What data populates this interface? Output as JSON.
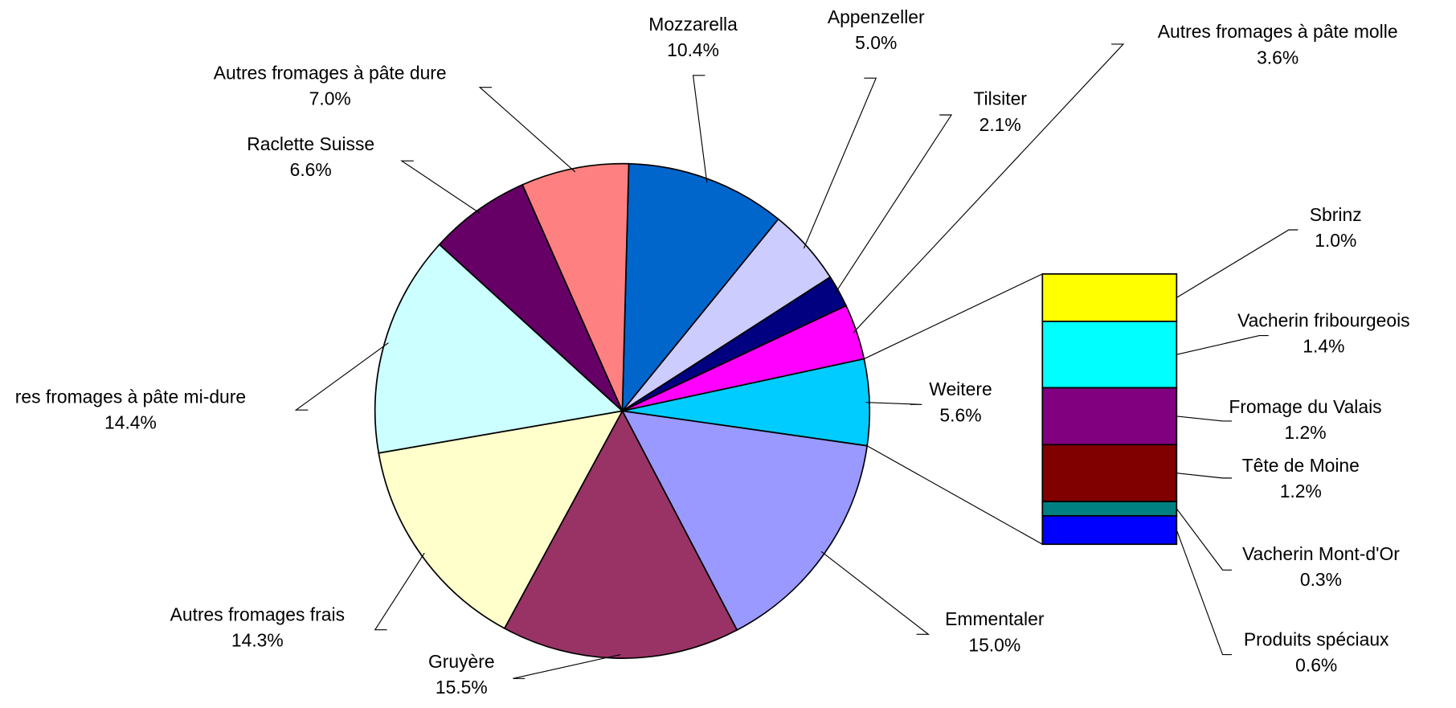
{
  "chart_data": {
    "type": "pie-of-bar",
    "pie": {
      "categories": [
        "Mozzarella",
        "Appenzeller",
        "Tilsiter",
        "Autres fromages à pâte molle",
        "Weitere",
        "Emmentaler",
        "Gruyère",
        "Autres fromages frais",
        "res fromages à pâte mi-dure",
        "Raclette Suisse",
        "Autres fromages à pâte dure"
      ],
      "values": [
        10.4,
        5.0,
        2.1,
        3.6,
        5.6,
        15.0,
        15.5,
        14.3,
        14.4,
        6.6,
        7.0
      ],
      "value_labels": [
        "10.4%",
        "5.0%",
        "2.1%",
        "3.6%",
        "5.6%",
        "15.0%",
        "15.5%",
        "14.3%",
        "14.4%",
        "6.6%",
        "7.0%"
      ],
      "colors": [
        "#0066cc",
        "#ccccff",
        "#000080",
        "#ff00ff",
        "#00ccff",
        "#9999ff",
        "#993366",
        "#ffffcc",
        "#ccffff",
        "#660066",
        "#ff8080"
      ]
    },
    "bar": {
      "categories": [
        "Sbrinz",
        "Vacherin fribourgeois",
        "Fromage du Valais",
        "Tête de Moine",
        "Vacherin Mont-d'Or",
        "Produits spéciaux"
      ],
      "values": [
        1.0,
        1.4,
        1.2,
        1.2,
        0.3,
        0.6
      ],
      "value_labels": [
        "1.0%",
        "1.4%",
        "1.2%",
        "1.2%",
        "0.3%",
        "0.6%"
      ],
      "colors": [
        "#ffff00",
        "#00ffff",
        "#800080",
        "#800000",
        "#008080",
        "#0000ff"
      ]
    }
  }
}
